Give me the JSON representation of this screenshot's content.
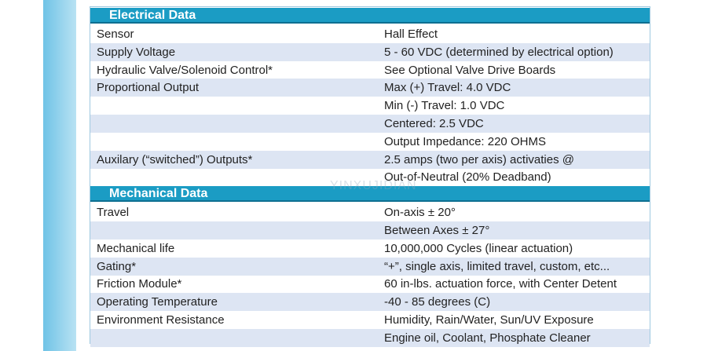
{
  "sections": [
    {
      "title": "Electrical Data",
      "rows": [
        [
          "Sensor",
          "Hall Effect"
        ],
        [
          "Supply Voltage",
          "5 - 60 VDC (determined by electrical option)"
        ],
        [
          "Hydraulic Valve/Solenoid Control*",
          "See Optional Valve Drive Boards"
        ],
        [
          "Proportional Output",
          "Max (+) Travel: 4.0 VDC"
        ],
        [
          null,
          "Min (-) Travel: 1.0 VDC"
        ],
        [
          null,
          "Centered: 2.5 VDC"
        ],
        [
          null,
          "Output Impedance: 220 OHMS"
        ],
        [
          "Auxilary (“switched”) Outputs*",
          "2.5 amps (two per axis) activaties @"
        ],
        [
          null,
          "Out-of-Neutral (20% Deadband)"
        ]
      ]
    },
    {
      "title": "Mechanical Data",
      "rows": [
        [
          "Travel",
          "On-axis ± 20°"
        ],
        [
          null,
          "Between Axes ± 27°"
        ],
        [
          "Mechanical life",
          "10,000,000 Cycles (linear actuation)"
        ],
        [
          "Gating*",
          "“+”, single axis, limited travel, custom, etc..."
        ],
        [
          "Friction Module*",
          "60 in-lbs. actuation force, with Center Detent"
        ],
        [
          "Operating Temperature",
          "-40 - 85 degrees (C)"
        ],
        [
          "Environment Resistance",
          "Humidity, Rain/Water, Sun/UV Exposure"
        ],
        [
          null,
          "Engine oil, Coolant, Phosphate Cleaner"
        ]
      ]
    }
  ],
  "watermark": "YINXUJIDIAN"
}
